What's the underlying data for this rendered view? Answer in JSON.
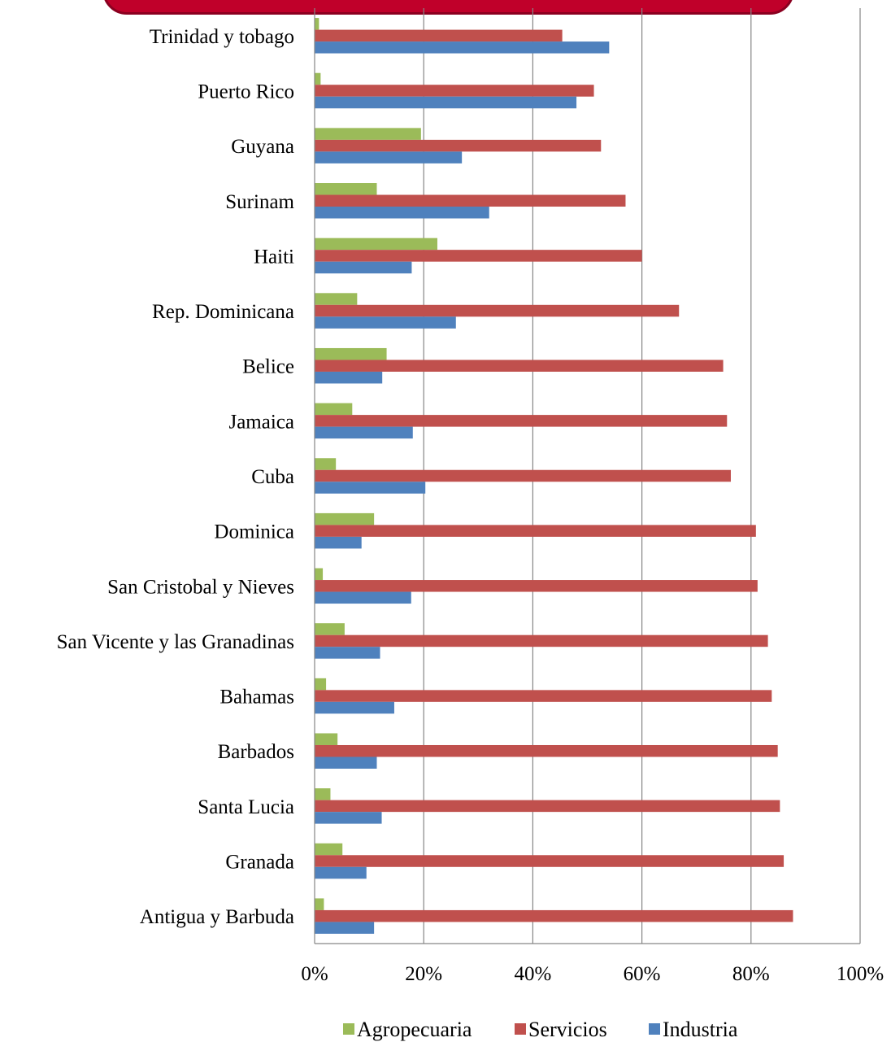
{
  "chart_data": {
    "type": "bar",
    "orientation": "horizontal",
    "categories": [
      "Trinidad y tobago",
      "Puerto Rico",
      "Guyana",
      "Surinam",
      "Haiti",
      "Rep. Dominicana",
      "Belice",
      "Jamaica",
      "Cuba",
      "Dominica",
      "San Cristobal y Nieves",
      "San Vicente y las Granadinas",
      "Bahamas",
      "Barbados",
      "Santa Lucia",
      "Granada",
      "Antigua y Barbuda"
    ],
    "series": [
      {
        "name": "Agropecuaria",
        "color": "#9bbb59",
        "values": [
          0.8,
          1.1,
          19.5,
          11.4,
          22.5,
          7.8,
          13.2,
          6.9,
          3.9,
          10.9,
          1.5,
          5.5,
          2.1,
          4.2,
          2.9,
          5.1,
          1.7
        ]
      },
      {
        "name": "Servicios",
        "color": "#c0504d",
        "values": [
          45.4,
          51.2,
          52.5,
          57.0,
          60.0,
          66.8,
          74.9,
          75.6,
          76.3,
          80.9,
          81.2,
          83.1,
          83.8,
          84.9,
          85.3,
          86.0,
          87.7
        ]
      },
      {
        "name": "Industria",
        "color": "#4f81bd",
        "values": [
          54.0,
          48.0,
          27.0,
          32.0,
          17.8,
          25.9,
          12.4,
          18.0,
          20.3,
          8.6,
          17.7,
          12.0,
          14.6,
          11.4,
          12.3,
          9.5,
          10.9
        ]
      }
    ],
    "xlim": [
      0,
      100
    ],
    "xticks": [
      "0%",
      "20%",
      "40%",
      "60%",
      "80%",
      "100%"
    ],
    "grid": true,
    "legend": "bottom",
    "title": "",
    "xlabel": "",
    "ylabel": ""
  }
}
